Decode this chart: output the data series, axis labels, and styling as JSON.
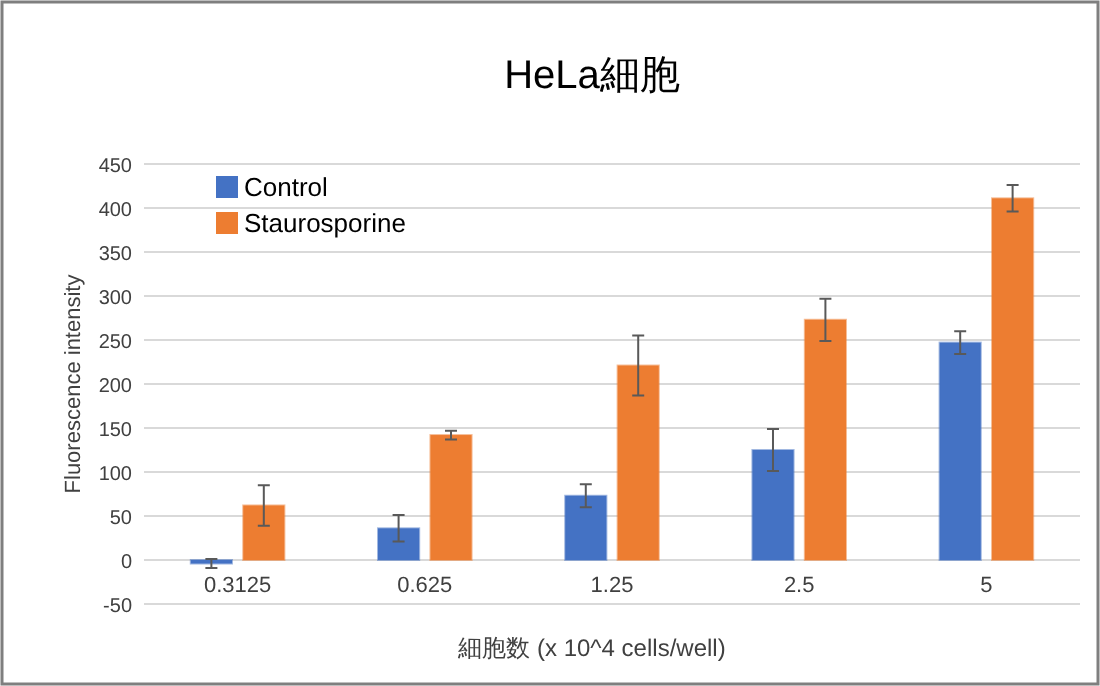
{
  "chart_data": {
    "type": "bar",
    "title": "HeLa細胞",
    "xlabel": "細胞数 (x 10^4 cells/well)",
    "ylabel": "Fluorescence intensity",
    "categories": [
      "0.3125",
      "0.625",
      "1.25",
      "2.5",
      "5"
    ],
    "series": [
      {
        "name": "Control",
        "color": "#4472c4",
        "values": [
          -4,
          36,
          73,
          125,
          247
        ],
        "errors": [
          5,
          15,
          13,
          24,
          13
        ]
      },
      {
        "name": "Staurosporine",
        "color": "#ed7d31",
        "values": [
          62,
          142,
          221,
          273,
          411
        ],
        "errors": [
          23,
          5,
          34,
          24,
          15
        ]
      }
    ],
    "ylim": [
      -50,
      450
    ],
    "yticks": [
      -50,
      0,
      50,
      100,
      150,
      200,
      250,
      300,
      350,
      400,
      450
    ],
    "grid": "y",
    "legend": "top left"
  }
}
